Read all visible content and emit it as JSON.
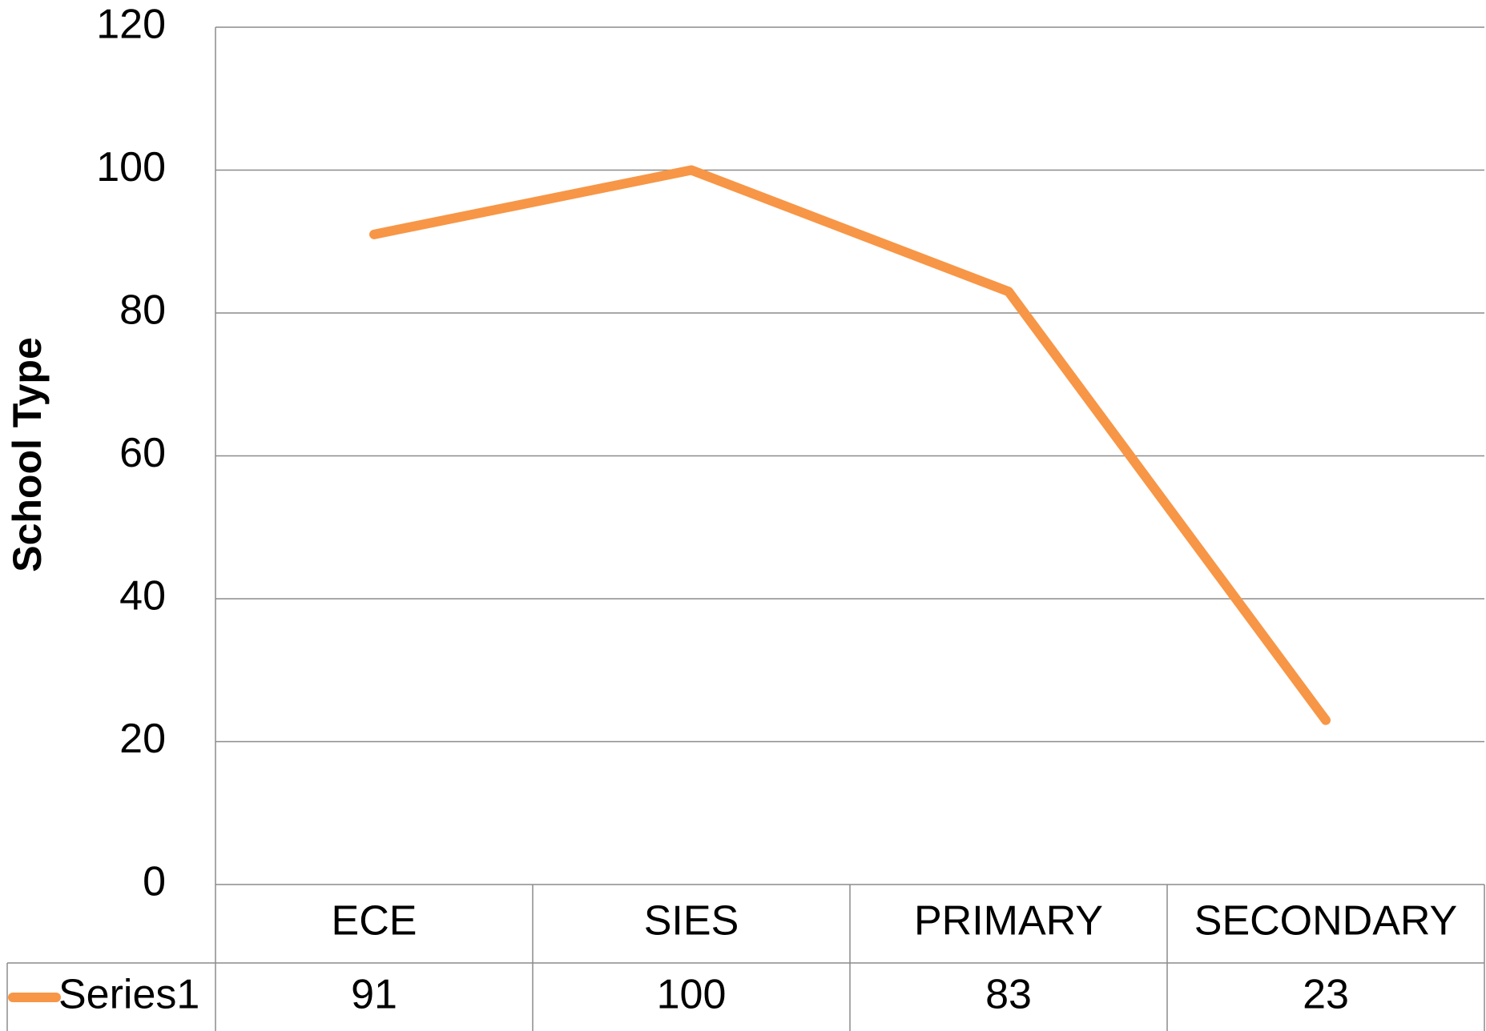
{
  "chart_data": {
    "type": "line",
    "y_label": "School Type",
    "categories": [
      "ECE",
      "SIES",
      "PRIMARY",
      "SECONDARY"
    ],
    "series": [
      {
        "name": "Series1",
        "color": "#f79646",
        "values": [
          91,
          100,
          83,
          23
        ]
      }
    ],
    "ylim": [
      0,
      120
    ],
    "yticks": [
      0,
      20,
      40,
      60,
      80,
      100,
      120
    ],
    "grid": true,
    "data_table": true
  }
}
